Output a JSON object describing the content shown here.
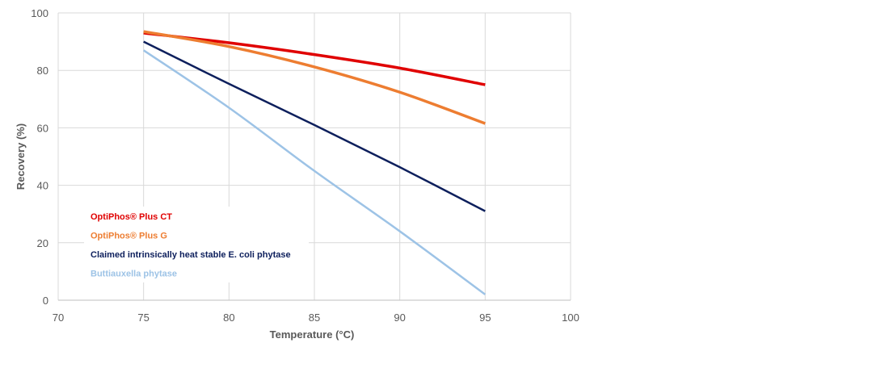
{
  "chart_data": {
    "type": "line",
    "title": "",
    "xlabel": "Temperature (°C)",
    "ylabel": "Recovery (%)",
    "xlim": [
      70,
      100
    ],
    "ylim": [
      0,
      100
    ],
    "x_ticks": [
      70,
      75,
      80,
      85,
      90,
      95,
      100
    ],
    "y_ticks": [
      0,
      20,
      40,
      60,
      80,
      100
    ],
    "grid": true,
    "legend_position": "lower-left inside plot",
    "x": [
      75,
      80,
      85,
      90,
      95
    ],
    "series": [
      {
        "name": "OptiPhos® Plus CT",
        "color": "#e00000",
        "values": [
          93,
          89.6,
          85.5,
          80.8,
          75
        ]
      },
      {
        "name": "OptiPhos® Plus G",
        "color": "#ed7d31",
        "values": [
          93.5,
          88.3,
          81.2,
          72.4,
          61.5
        ]
      },
      {
        "name": "Claimed intrinsically heat stable E. coli phytase",
        "color": "#0d1f5c",
        "values": [
          90,
          75.3,
          61,
          46.3,
          31
        ]
      },
      {
        "name": "Buttiauxella phytase",
        "color": "#9dc3e6",
        "values": [
          87,
          67,
          45,
          24,
          2
        ]
      }
    ]
  }
}
